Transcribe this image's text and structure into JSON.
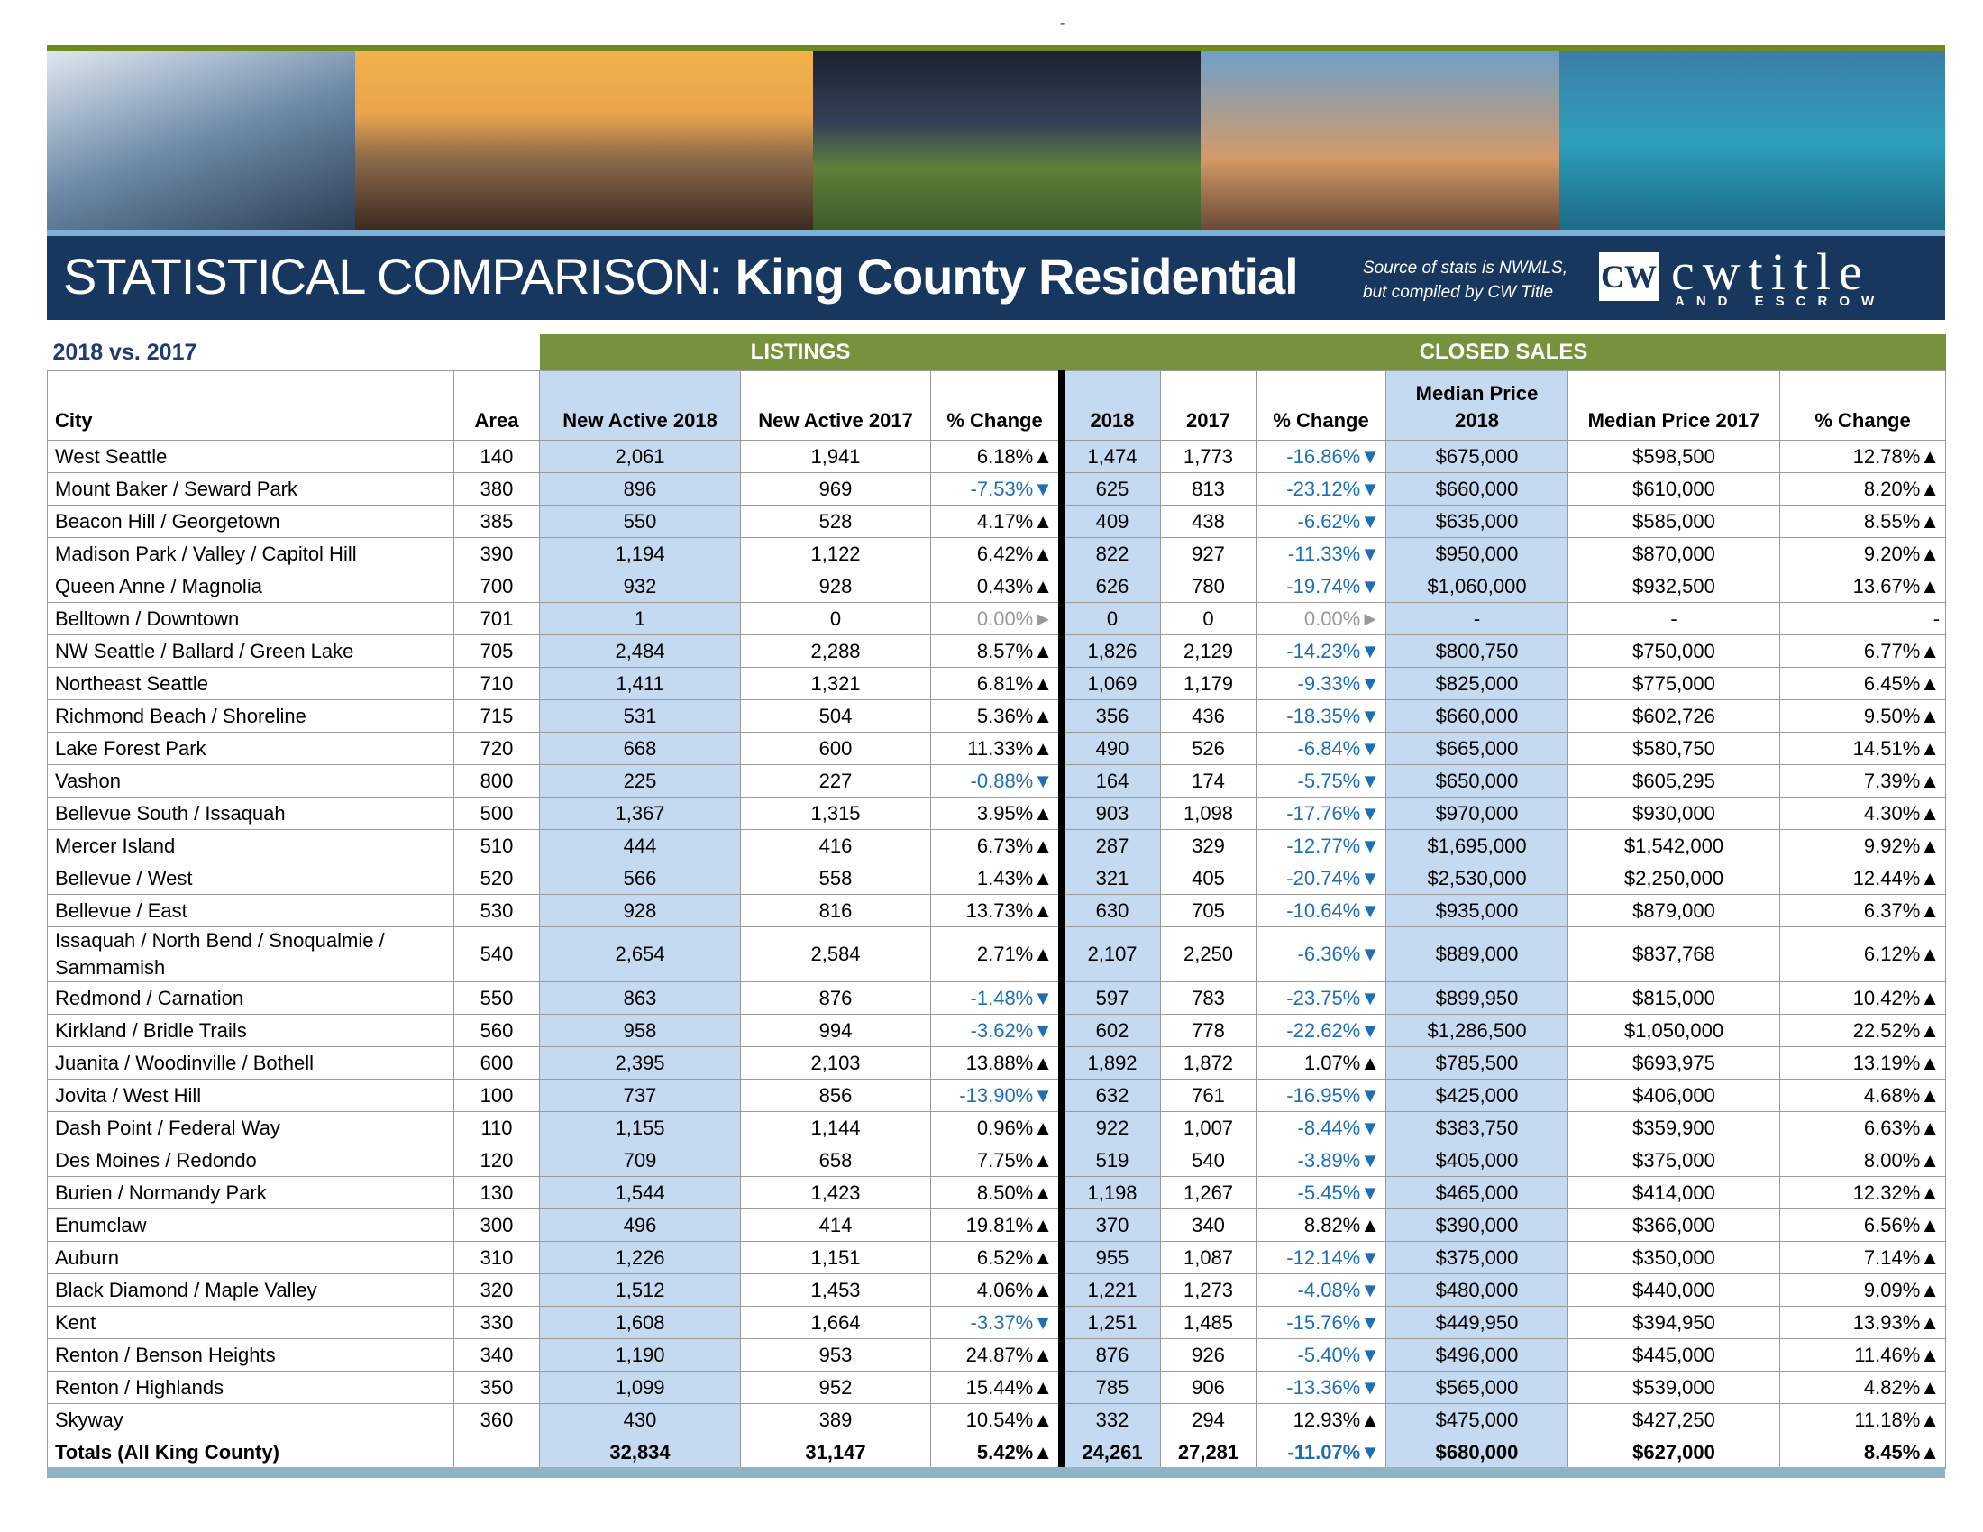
{
  "top_mark": "-",
  "header": {
    "title_light": "STATISTICAL COMPARISON:",
    "title_bold": "King County Residential",
    "source_note_1": "Source of stats is NWMLS,",
    "source_note_2": "but compiled by CW Title",
    "logo_badge": "CW",
    "logo_name": "cwtitle",
    "logo_sub": "AND ESCROW"
  },
  "table": {
    "caption": "2018 vs. 2017",
    "groups": [
      "LISTINGS",
      "CLOSED SALES"
    ],
    "columns": [
      "City",
      "Area",
      "New Active 2018",
      "New Active 2017",
      "% Change",
      "2018",
      "2017",
      "% Change",
      "Median Price 2018",
      "Median Price 2017",
      "% Change"
    ],
    "rows": [
      [
        "West Seattle",
        "140",
        "2,061",
        "1,941",
        "6.18%▲",
        "1,474",
        "1,773",
        "-16.86%▼",
        "$675,000",
        "$598,500",
        "12.78%▲"
      ],
      [
        "Mount Baker / Seward Park",
        "380",
        "896",
        "969",
        "-7.53%▼",
        "625",
        "813",
        "-23.12%▼",
        "$660,000",
        "$610,000",
        "8.20%▲"
      ],
      [
        "Beacon Hill / Georgetown",
        "385",
        "550",
        "528",
        "4.17%▲",
        "409",
        "438",
        "-6.62%▼",
        "$635,000",
        "$585,000",
        "8.55%▲"
      ],
      [
        "Madison Park / Valley / Capitol Hill",
        "390",
        "1,194",
        "1,122",
        "6.42%▲",
        "822",
        "927",
        "-11.33%▼",
        "$950,000",
        "$870,000",
        "9.20%▲"
      ],
      [
        "Queen Anne / Magnolia",
        "700",
        "932",
        "928",
        "0.43%▲",
        "626",
        "780",
        "-19.74%▼",
        "$1,060,000",
        "$932,500",
        "13.67%▲"
      ],
      [
        "Belltown / Downtown",
        "701",
        "1",
        "0",
        "0.00%►",
        "0",
        "0",
        "0.00%►",
        "-",
        "-",
        "-"
      ],
      [
        "NW Seattle / Ballard / Green Lake",
        "705",
        "2,484",
        "2,288",
        "8.57%▲",
        "1,826",
        "2,129",
        "-14.23%▼",
        "$800,750",
        "$750,000",
        "6.77%▲"
      ],
      [
        "Northeast Seattle",
        "710",
        "1,411",
        "1,321",
        "6.81%▲",
        "1,069",
        "1,179",
        "-9.33%▼",
        "$825,000",
        "$775,000",
        "6.45%▲"
      ],
      [
        "Richmond Beach / Shoreline",
        "715",
        "531",
        "504",
        "5.36%▲",
        "356",
        "436",
        "-18.35%▼",
        "$660,000",
        "$602,726",
        "9.50%▲"
      ],
      [
        "Lake Forest Park",
        "720",
        "668",
        "600",
        "11.33%▲",
        "490",
        "526",
        "-6.84%▼",
        "$665,000",
        "$580,750",
        "14.51%▲"
      ],
      [
        "Vashon",
        "800",
        "225",
        "227",
        "-0.88%▼",
        "164",
        "174",
        "-5.75%▼",
        "$650,000",
        "$605,295",
        "7.39%▲"
      ],
      [
        "Bellevue South / Issaquah",
        "500",
        "1,367",
        "1,315",
        "3.95%▲",
        "903",
        "1,098",
        "-17.76%▼",
        "$970,000",
        "$930,000",
        "4.30%▲"
      ],
      [
        "Mercer Island",
        "510",
        "444",
        "416",
        "6.73%▲",
        "287",
        "329",
        "-12.77%▼",
        "$1,695,000",
        "$1,542,000",
        "9.92%▲"
      ],
      [
        "Bellevue / West",
        "520",
        "566",
        "558",
        "1.43%▲",
        "321",
        "405",
        "-20.74%▼",
        "$2,530,000",
        "$2,250,000",
        "12.44%▲"
      ],
      [
        "Bellevue / East",
        "530",
        "928",
        "816",
        "13.73%▲",
        "630",
        "705",
        "-10.64%▼",
        "$935,000",
        "$879,000",
        "6.37%▲"
      ],
      [
        "Issaquah / North Bend / Snoqualmie / Sammamish",
        "540",
        "2,654",
        "2,584",
        "2.71%▲",
        "2,107",
        "2,250",
        "-6.36%▼",
        "$889,000",
        "$837,768",
        "6.12%▲"
      ],
      [
        "Redmond / Carnation",
        "550",
        "863",
        "876",
        "-1.48%▼",
        "597",
        "783",
        "-23.75%▼",
        "$899,950",
        "$815,000",
        "10.42%▲"
      ],
      [
        "Kirkland / Bridle Trails",
        "560",
        "958",
        "994",
        "-3.62%▼",
        "602",
        "778",
        "-22.62%▼",
        "$1,286,500",
        "$1,050,000",
        "22.52%▲"
      ],
      [
        "Juanita / Woodinville / Bothell",
        "600",
        "2,395",
        "2,103",
        "13.88%▲",
        "1,892",
        "1,872",
        "1.07%▲",
        "$785,500",
        "$693,975",
        "13.19%▲"
      ],
      [
        "Jovita / West Hill",
        "100",
        "737",
        "856",
        "-13.90%▼",
        "632",
        "761",
        "-16.95%▼",
        "$425,000",
        "$406,000",
        "4.68%▲"
      ],
      [
        "Dash Point / Federal Way",
        "110",
        "1,155",
        "1,144",
        "0.96%▲",
        "922",
        "1,007",
        "-8.44%▼",
        "$383,750",
        "$359,900",
        "6.63%▲"
      ],
      [
        "Des Moines / Redondo",
        "120",
        "709",
        "658",
        "7.75%▲",
        "519",
        "540",
        "-3.89%▼",
        "$405,000",
        "$375,000",
        "8.00%▲"
      ],
      [
        "Burien / Normandy Park",
        "130",
        "1,544",
        "1,423",
        "8.50%▲",
        "1,198",
        "1,267",
        "-5.45%▼",
        "$465,000",
        "$414,000",
        "12.32%▲"
      ],
      [
        "Enumclaw",
        "300",
        "496",
        "414",
        "19.81%▲",
        "370",
        "340",
        "8.82%▲",
        "$390,000",
        "$366,000",
        "6.56%▲"
      ],
      [
        "Auburn",
        "310",
        "1,226",
        "1,151",
        "6.52%▲",
        "955",
        "1,087",
        "-12.14%▼",
        "$375,000",
        "$350,000",
        "7.14%▲"
      ],
      [
        "Black Diamond / Maple Valley",
        "320",
        "1,512",
        "1,453",
        "4.06%▲",
        "1,221",
        "1,273",
        "-4.08%▼",
        "$480,000",
        "$440,000",
        "9.09%▲"
      ],
      [
        "Kent",
        "330",
        "1,608",
        "1,664",
        "-3.37%▼",
        "1,251",
        "1,485",
        "-15.76%▼",
        "$449,950",
        "$394,950",
        "13.93%▲"
      ],
      [
        "Renton / Benson Heights",
        "340",
        "1,190",
        "953",
        "24.87%▲",
        "876",
        "926",
        "-5.40%▼",
        "$496,000",
        "$445,000",
        "11.46%▲"
      ],
      [
        "Renton / Highlands",
        "350",
        "1,099",
        "952",
        "15.44%▲",
        "785",
        "906",
        "-13.36%▼",
        "$565,000",
        "$539,000",
        "4.82%▲"
      ],
      [
        "Skyway",
        "360",
        "430",
        "389",
        "10.54%▲",
        "332",
        "294",
        "12.93%▲",
        "$475,000",
        "$427,250",
        "11.18%▲"
      ]
    ],
    "totals": [
      "Totals (All King County)",
      null,
      "32,834",
      "31,147",
      "5.42%▲",
      "24,261",
      "27,281",
      "-11.07%▼",
      "$680,000",
      "$627,000",
      "8.45%▲"
    ]
  }
}
